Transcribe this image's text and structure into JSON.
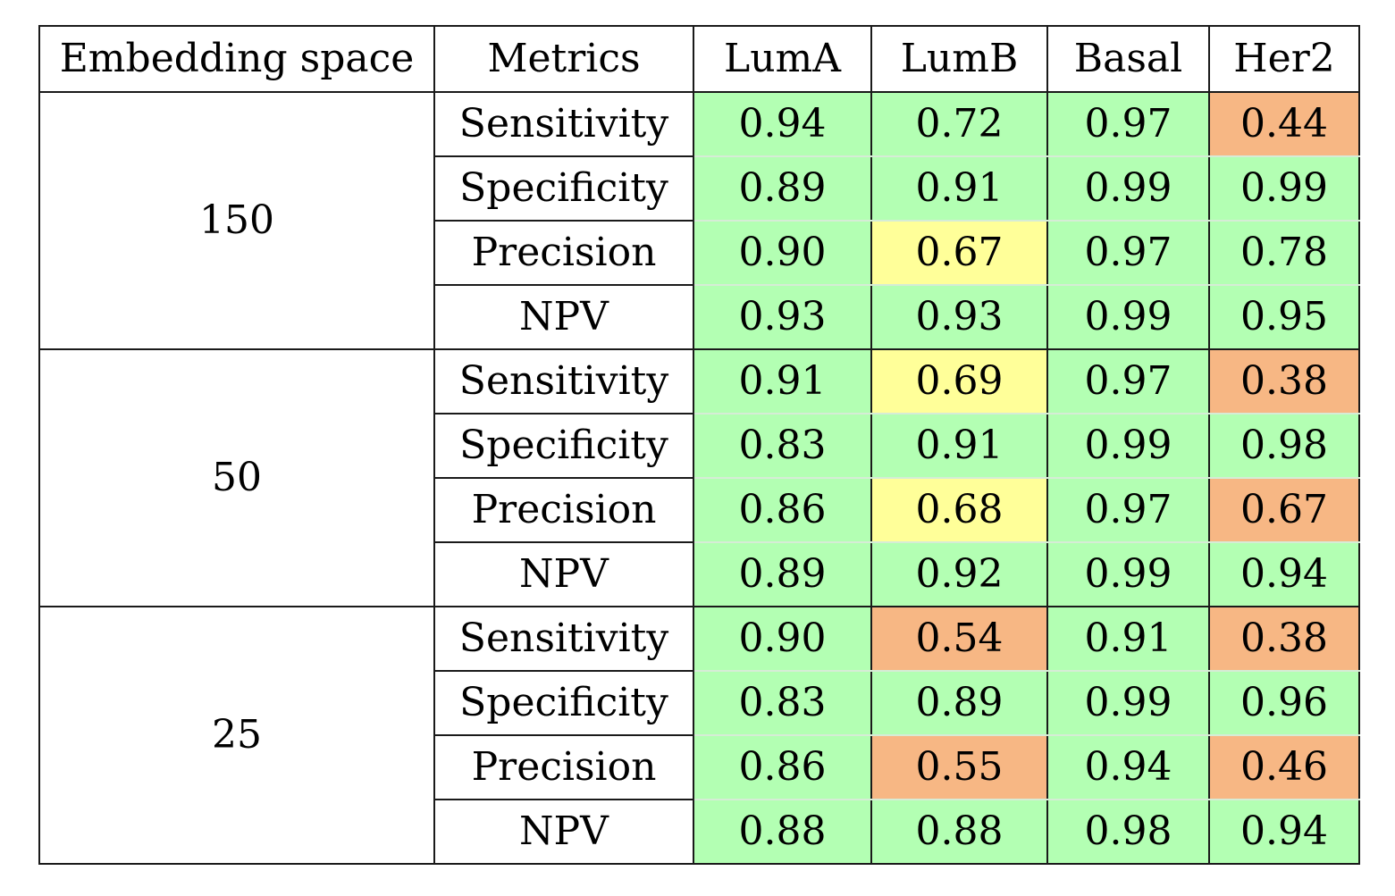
{
  "colors": {
    "good": "#b3ffb3",
    "medium": "#ffff99",
    "poor": "#f7b784"
  },
  "headers": [
    "Embedding space",
    "Metrics",
    "LumA",
    "LumB",
    "Basal",
    "Her2"
  ],
  "groups": [
    {
      "label": "150",
      "rows": [
        {
          "metric": "Sensitivity",
          "values": [
            "0.94",
            "0.72",
            "0.97",
            "0.44"
          ],
          "levels": [
            "good",
            "good",
            "good",
            "poor"
          ]
        },
        {
          "metric": "Specificity",
          "values": [
            "0.89",
            "0.91",
            "0.99",
            "0.99"
          ],
          "levels": [
            "good",
            "good",
            "good",
            "good"
          ]
        },
        {
          "metric": "Precision",
          "values": [
            "0.90",
            "0.67",
            "0.97",
            "0.78"
          ],
          "levels": [
            "good",
            "medium",
            "good",
            "good"
          ]
        },
        {
          "metric": "NPV",
          "values": [
            "0.93",
            "0.93",
            "0.99",
            "0.95"
          ],
          "levels": [
            "good",
            "good",
            "good",
            "good"
          ]
        }
      ]
    },
    {
      "label": "50",
      "rows": [
        {
          "metric": "Sensitivity",
          "values": [
            "0.91",
            "0.69",
            "0.97",
            "0.38"
          ],
          "levels": [
            "good",
            "medium",
            "good",
            "poor"
          ]
        },
        {
          "metric": "Specificity",
          "values": [
            "0.83",
            "0.91",
            "0.99",
            "0.98"
          ],
          "levels": [
            "good",
            "good",
            "good",
            "good"
          ]
        },
        {
          "metric": "Precision",
          "values": [
            "0.86",
            "0.68",
            "0.97",
            "0.67"
          ],
          "levels": [
            "good",
            "medium",
            "good",
            "poor"
          ]
        },
        {
          "metric": "NPV",
          "values": [
            "0.89",
            "0.92",
            "0.99",
            "0.94"
          ],
          "levels": [
            "good",
            "good",
            "good",
            "good"
          ]
        }
      ]
    },
    {
      "label": "25",
      "rows": [
        {
          "metric": "Sensitivity",
          "values": [
            "0.90",
            "0.54",
            "0.91",
            "0.38"
          ],
          "levels": [
            "good",
            "poor",
            "good",
            "poor"
          ]
        },
        {
          "metric": "Specificity",
          "values": [
            "0.83",
            "0.89",
            "0.99",
            "0.96"
          ],
          "levels": [
            "good",
            "good",
            "good",
            "good"
          ]
        },
        {
          "metric": "Precision",
          "values": [
            "0.86",
            "0.55",
            "0.94",
            "0.46"
          ],
          "levels": [
            "good",
            "poor",
            "good",
            "poor"
          ]
        },
        {
          "metric": "NPV",
          "values": [
            "0.88",
            "0.88",
            "0.98",
            "0.94"
          ],
          "levels": [
            "good",
            "good",
            "good",
            "good"
          ]
        }
      ]
    }
  ]
}
